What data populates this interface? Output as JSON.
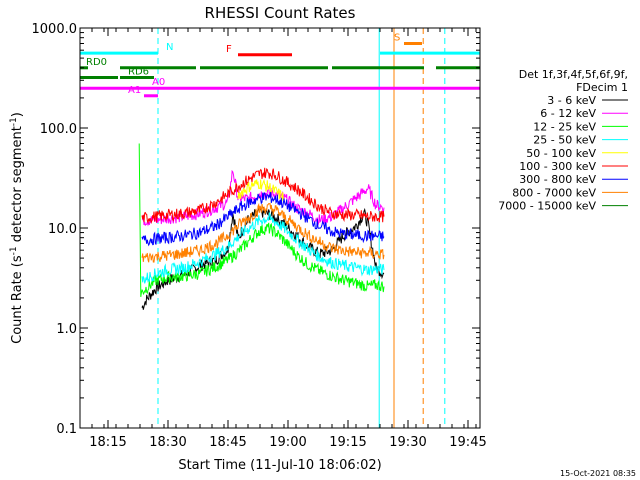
{
  "chart_data": {
    "type": "line",
    "title": "RHESSI Count Rates",
    "xlabel": "Start Time (11-Jul-10 18:06:02)",
    "ylabel_parts": [
      "Count Rate (s",
      "-1",
      " detector segment",
      "-1",
      ")"
    ],
    "y_scale": "log",
    "ylim": [
      0.1,
      1000.0
    ],
    "xlim_min": [
      6.0,
      106.0
    ],
    "x_ticks": [
      {
        "min": 13,
        "label": "18:15"
      },
      {
        "min": 28,
        "label": "18:30"
      },
      {
        "min": 43,
        "label": "18:45"
      },
      {
        "min": 58,
        "label": "19:00"
      },
      {
        "min": 73,
        "label": "19:15"
      },
      {
        "min": 88,
        "label": "19:30"
      },
      {
        "min": 103,
        "label": "19:45"
      }
    ],
    "y_ticks": [
      {
        "v": 0.1,
        "label": "0.1"
      },
      {
        "v": 1.0,
        "label": "1.0"
      },
      {
        "v": 10.0,
        "label": "10.0"
      },
      {
        "v": 100.0,
        "label": "100.0"
      },
      {
        "v": 1000.0,
        "label": "1000.0"
      }
    ],
    "legend_header": [
      "Det 1f,3f,4f,5f,6f,9f,",
      "FDecim 1"
    ],
    "legend_position": "right",
    "series": [
      {
        "name": "3 - 6 keV",
        "color": "#000000",
        "points": [
          [
            21.5,
            1.6
          ],
          [
            22.5,
            1.9
          ],
          [
            25,
            2.5
          ],
          [
            28,
            3.0
          ],
          [
            32,
            3.4
          ],
          [
            36,
            4.2
          ],
          [
            40,
            4.8
          ],
          [
            43,
            6.2
          ],
          [
            44.2,
            14
          ],
          [
            45.5,
            8
          ],
          [
            48,
            12
          ],
          [
            51,
            14.5
          ],
          [
            54,
            13.5
          ],
          [
            57,
            11
          ],
          [
            60,
            8.5
          ],
          [
            63,
            6.5
          ],
          [
            66,
            5.5
          ],
          [
            69,
            6
          ],
          [
            72,
            8.5
          ],
          [
            75,
            10.5
          ],
          [
            77,
            14
          ],
          [
            78,
            11
          ],
          [
            80,
            4
          ],
          [
            82,
            3.5
          ]
        ]
      },
      {
        "name": "6 - 12 keV",
        "color": "#ff00ff",
        "points": [
          [
            21.5,
            12
          ],
          [
            25,
            12
          ],
          [
            28,
            12.5
          ],
          [
            32,
            13
          ],
          [
            36,
            14
          ],
          [
            40,
            16
          ],
          [
            43,
            18
          ],
          [
            44.2,
            38
          ],
          [
            45.5,
            20
          ],
          [
            48,
            19.5
          ],
          [
            51,
            22
          ],
          [
            54,
            22.5
          ],
          [
            57,
            20
          ],
          [
            60,
            16
          ],
          [
            63,
            14
          ],
          [
            66,
            12
          ],
          [
            69,
            13
          ],
          [
            72,
            16
          ],
          [
            75,
            20
          ],
          [
            78,
            25
          ],
          [
            80,
            17
          ],
          [
            82,
            16
          ]
        ]
      },
      {
        "name": "12 - 25 keV",
        "color": "#00ff00",
        "points": [
          [
            20.8,
            65
          ],
          [
            21.2,
            2.2
          ],
          [
            22,
            2.4
          ],
          [
            25,
            3.0
          ],
          [
            28,
            3.2
          ],
          [
            32,
            3.3
          ],
          [
            36,
            3.5
          ],
          [
            40,
            4.1
          ],
          [
            43,
            4.8
          ],
          [
            46,
            6.0
          ],
          [
            49,
            8.0
          ],
          [
            51,
            9.5
          ],
          [
            53,
            10.0
          ],
          [
            55,
            9.0
          ],
          [
            57,
            7.5
          ],
          [
            60,
            5.5
          ],
          [
            63,
            4.3
          ],
          [
            66,
            3.7
          ],
          [
            69,
            3.3
          ],
          [
            72,
            3.0
          ],
          [
            75,
            2.8
          ],
          [
            78,
            2.6
          ],
          [
            80,
            2.7
          ],
          [
            82,
            2.6
          ]
        ]
      },
      {
        "name": "25 - 50 keV",
        "color": "#00ffff",
        "points": [
          [
            21.5,
            3.0
          ],
          [
            25,
            3.5
          ],
          [
            28,
            3.8
          ],
          [
            32,
            4.0
          ],
          [
            36,
            4.6
          ],
          [
            40,
            5.5
          ],
          [
            43,
            6.5
          ],
          [
            46,
            8.5
          ],
          [
            49,
            10.5
          ],
          [
            51,
            12.0
          ],
          [
            53,
            12.5
          ],
          [
            55,
            11.5
          ],
          [
            57,
            10.0
          ],
          [
            60,
            7.8
          ],
          [
            63,
            6.2
          ],
          [
            66,
            5.1
          ],
          [
            69,
            4.5
          ],
          [
            72,
            4.2
          ],
          [
            75,
            4.0
          ],
          [
            78,
            3.8
          ],
          [
            80,
            3.9
          ],
          [
            82,
            3.8
          ]
        ]
      },
      {
        "name": "50 - 100 keV",
        "color": "#ffff00",
        "points": [
          [
            45.5,
            21
          ],
          [
            47,
            24
          ],
          [
            49,
            27
          ],
          [
            51,
            28
          ],
          [
            53,
            26
          ],
          [
            55,
            23
          ],
          [
            57,
            20
          ]
        ]
      },
      {
        "name": "100 - 300 keV",
        "color": "#ff0000",
        "points": [
          [
            21.5,
            12.5
          ],
          [
            25,
            13
          ],
          [
            28,
            13.5
          ],
          [
            32,
            14
          ],
          [
            36,
            15
          ],
          [
            40,
            18
          ],
          [
            43,
            22
          ],
          [
            46,
            27
          ],
          [
            49,
            32
          ],
          [
            51,
            35
          ],
          [
            53,
            36
          ],
          [
            55,
            34
          ],
          [
            57,
            30
          ],
          [
            60,
            25
          ],
          [
            63,
            20
          ],
          [
            66,
            16
          ],
          [
            69,
            14
          ],
          [
            72,
            13.5
          ],
          [
            75,
            13.5
          ],
          [
            78,
            13
          ],
          [
            80,
            13
          ],
          [
            82,
            13
          ]
        ]
      },
      {
        "name": "300 - 800 keV",
        "color": "#0000ff",
        "points": [
          [
            21.5,
            7.5
          ],
          [
            25,
            7.8
          ],
          [
            28,
            8.0
          ],
          [
            32,
            8.4
          ],
          [
            36,
            9.0
          ],
          [
            40,
            10.5
          ],
          [
            43,
            13.0
          ],
          [
            46,
            16
          ],
          [
            49,
            18.5
          ],
          [
            51,
            20
          ],
          [
            53,
            20.5
          ],
          [
            55,
            19.5
          ],
          [
            57,
            17.5
          ],
          [
            60,
            15
          ],
          [
            63,
            12.5
          ],
          [
            66,
            10.5
          ],
          [
            69,
            9.2
          ],
          [
            72,
            8.7
          ],
          [
            75,
            8.5
          ],
          [
            78,
            8.3
          ],
          [
            80,
            8.3
          ],
          [
            82,
            8.2
          ]
        ]
      },
      {
        "name": "800 - 7000 keV",
        "color": "#ff8000",
        "points": [
          [
            21.5,
            5.0
          ],
          [
            25,
            5.2
          ],
          [
            28,
            5.3
          ],
          [
            32,
            5.6
          ],
          [
            36,
            6.0
          ],
          [
            40,
            7.0
          ],
          [
            43,
            8.5
          ],
          [
            46,
            11
          ],
          [
            49,
            13.5
          ],
          [
            51,
            15.5
          ],
          [
            53,
            16
          ],
          [
            55,
            15
          ],
          [
            57,
            13
          ],
          [
            60,
            10.5
          ],
          [
            63,
            8.5
          ],
          [
            66,
            7.2
          ],
          [
            69,
            6.3
          ],
          [
            72,
            5.9
          ],
          [
            75,
            5.7
          ],
          [
            78,
            5.6
          ],
          [
            80,
            5.5
          ],
          [
            82,
            5.4
          ]
        ]
      },
      {
        "name": "7000 - 15000 keV",
        "color": "#008000",
        "points": []
      }
    ],
    "attenuator_bars": [
      {
        "label": "N",
        "color": "#00ffff",
        "level": 560,
        "segments": [
          [
            6,
            25.5
          ],
          [
            81,
            106
          ]
        ],
        "label_min": 27.5
      },
      {
        "label": "S",
        "color": "#ff8000",
        "level": 700,
        "segments": [
          [
            87,
            91.5
          ]
        ],
        "label_min": 84.5
      },
      {
        "label": "F",
        "color": "#ff0000",
        "level": 540,
        "segments": [
          [
            45.5,
            59
          ]
        ],
        "label_min": 42.5
      },
      {
        "label": "RD0",
        "color": "#008000",
        "level": 400,
        "segments": [
          [
            6,
            8
          ],
          [
            16,
            35
          ],
          [
            36,
            68
          ],
          [
            69,
            92
          ],
          [
            95,
            106
          ]
        ],
        "label_min": 7.5
      },
      {
        "label": "RD6",
        "color": "#008000",
        "level": 320,
        "segments": [
          [
            6,
            15.5
          ],
          [
            16,
            24.5
          ]
        ],
        "label_min": 18
      },
      {
        "label": "A0",
        "color": "#ff00ff",
        "level": 250,
        "segments": [
          [
            6,
            106
          ]
        ],
        "label_min": 24
      },
      {
        "label": "A1",
        "color": "#ff00ff",
        "level": 210,
        "segments": [
          [
            22,
            25.5
          ]
        ],
        "label_min": 18
      }
    ],
    "vertical_lines": [
      {
        "min": 6.0,
        "color": "#00ffff",
        "dash": false
      },
      {
        "min": 25.5,
        "color": "#00ffff",
        "dash": true
      },
      {
        "min": 80.8,
        "color": "#00ffff",
        "dash": false
      },
      {
        "min": 84.5,
        "color": "#ff8000",
        "dash": false
      },
      {
        "min": 91.8,
        "color": "#ff8000",
        "dash": true
      },
      {
        "min": 97.2,
        "color": "#00ffff",
        "dash": true
      }
    ]
  },
  "footer": {
    "timestamp": "15-Oct-2021 08:35"
  }
}
